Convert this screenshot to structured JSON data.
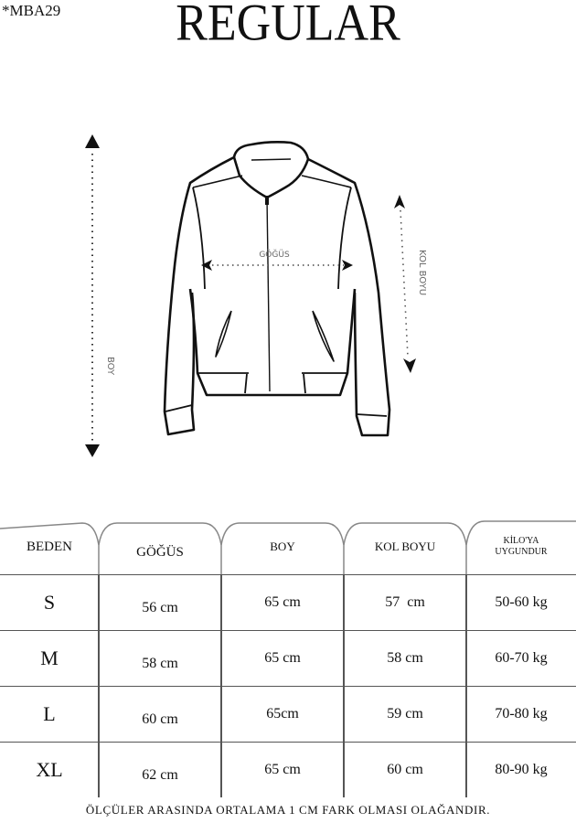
{
  "product_code": "*MBA29",
  "fit_title": "REGULAR",
  "diagram": {
    "length_label": "BOY",
    "chest_label": "GÖĞÜS",
    "sleeve_label": "KOL BOYU"
  },
  "table": {
    "headers": [
      "BEDEN",
      "GÖĞÜS",
      "BOY",
      "KOL BOYU",
      "KİLO'YA UYGUNDUR"
    ],
    "header_weight_line1": "KİLO'YA",
    "header_weight_line2": "UYGUNDUR",
    "rows": [
      [
        "S",
        "56 cm",
        "65 cm",
        "57  cm",
        "50-60 kg"
      ],
      [
        "M",
        "58 cm",
        "65 cm",
        "58 cm",
        "60-70 kg"
      ],
      [
        "L",
        "60 cm",
        "65cm",
        "59 cm",
        "70-80 kg"
      ],
      [
        "XL",
        "62 cm",
        "65 cm",
        "60 cm",
        "80-90 kg"
      ]
    ]
  },
  "footer_note": "ÖLÇÜLER ARASINDA ORTALAMA 1 CM FARK OLMASI OLAĞANDIR."
}
